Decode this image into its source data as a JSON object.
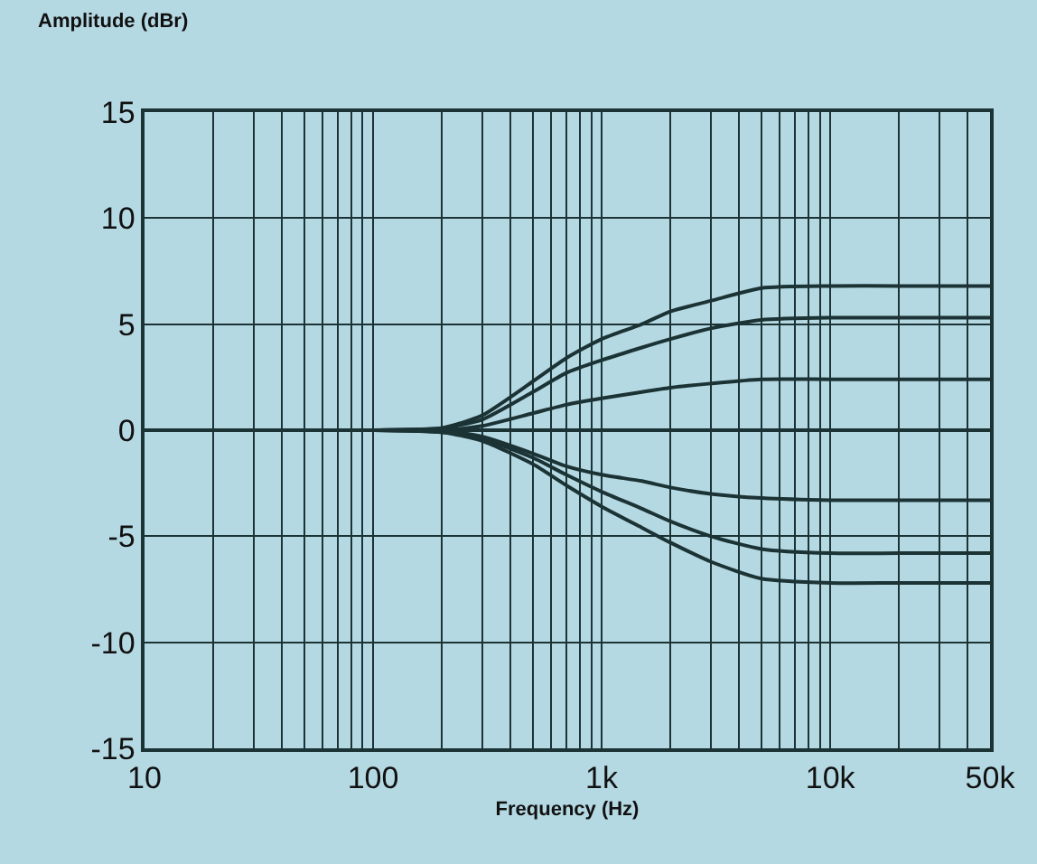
{
  "chart_data": {
    "type": "line",
    "xlabel": "Frequency (Hz)",
    "ylabel": "Amplitude (dBr)",
    "x": [
      10,
      100,
      200,
      300,
      500,
      700,
      1000,
      1500,
      2000,
      3000,
      5000,
      10000,
      20000,
      50000
    ],
    "series": [
      {
        "color": "#1c3335",
        "values": [
          0,
          0,
          0.1,
          0.7,
          2.3,
          3.4,
          4.3,
          5.0,
          5.6,
          6.1,
          6.7,
          6.8,
          6.8,
          6.8
        ]
      },
      {
        "color": "#1c3335",
        "values": [
          0,
          0,
          0.1,
          0.5,
          1.8,
          2.7,
          3.3,
          3.9,
          4.3,
          4.8,
          5.2,
          5.3,
          5.3,
          5.3
        ]
      },
      {
        "color": "#1c3335",
        "values": [
          0,
          0,
          0,
          0.2,
          0.8,
          1.2,
          1.5,
          1.8,
          2.0,
          2.2,
          2.4,
          2.4,
          2.4,
          2.4
        ]
      },
      {
        "color": "#1c3335",
        "values": [
          0,
          0,
          0,
          0,
          0,
          0,
          0,
          0,
          0,
          0,
          0,
          0,
          0,
          0
        ]
      },
      {
        "color": "#1c3335",
        "values": [
          0,
          0,
          0,
          -0.3,
          -1.1,
          -1.7,
          -2.1,
          -2.4,
          -2.7,
          -3.0,
          -3.2,
          -3.3,
          -3.3,
          -3.3
        ]
      },
      {
        "color": "#1c3335",
        "values": [
          0,
          0,
          -0.1,
          -0.4,
          -1.3,
          -2.1,
          -2.9,
          -3.7,
          -4.3,
          -5.0,
          -5.6,
          -5.8,
          -5.8,
          -5.8
        ]
      },
      {
        "color": "#1c3335",
        "values": [
          0,
          0,
          -0.1,
          -0.5,
          -1.6,
          -2.6,
          -3.6,
          -4.6,
          -5.3,
          -6.2,
          -7.0,
          -7.2,
          -7.2,
          -7.2
        ]
      }
    ],
    "log": "x",
    "xlim": [
      10,
      50000
    ],
    "xticks": [
      10,
      100,
      {
        "value": 1000,
        "label": "1k"
      },
      {
        "value": 10000,
        "label": "10k"
      },
      {
        "value": 50000,
        "label": "50k"
      }
    ],
    "ylim": [
      -15,
      15
    ],
    "yticks": [
      -15,
      -10,
      -5,
      0,
      5,
      10,
      15
    ],
    "grid": true,
    "marker": "none",
    "line_style": "solid"
  }
}
